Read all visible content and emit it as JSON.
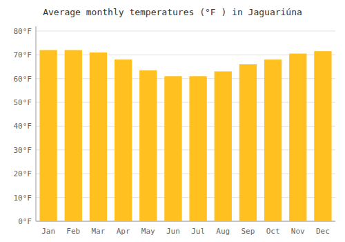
{
  "chart_data": {
    "type": "bar",
    "title": "Average monthly temperatures (°F ) in Jaguariúna",
    "categories": [
      "Jan",
      "Feb",
      "Mar",
      "Apr",
      "May",
      "Jun",
      "Jul",
      "Aug",
      "Sep",
      "Oct",
      "Nov",
      "Dec"
    ],
    "values": [
      72,
      72,
      71,
      68,
      63.5,
      61,
      61,
      63,
      66,
      68,
      70.5,
      71.5
    ],
    "color": "#FFC020",
    "ylim": [
      0,
      82
    ],
    "yticks": [
      {
        "value": 0,
        "label": "0°F"
      },
      {
        "value": 10,
        "label": "10°F"
      },
      {
        "value": 20,
        "label": "20°F"
      },
      {
        "value": 30,
        "label": "30°F"
      },
      {
        "value": 40,
        "label": "40°F"
      },
      {
        "value": 50,
        "label": "50°F"
      },
      {
        "value": 60,
        "label": "60°F"
      },
      {
        "value": 70,
        "label": "70°F"
      },
      {
        "value": 80,
        "label": "80°F"
      }
    ],
    "grid": true
  }
}
